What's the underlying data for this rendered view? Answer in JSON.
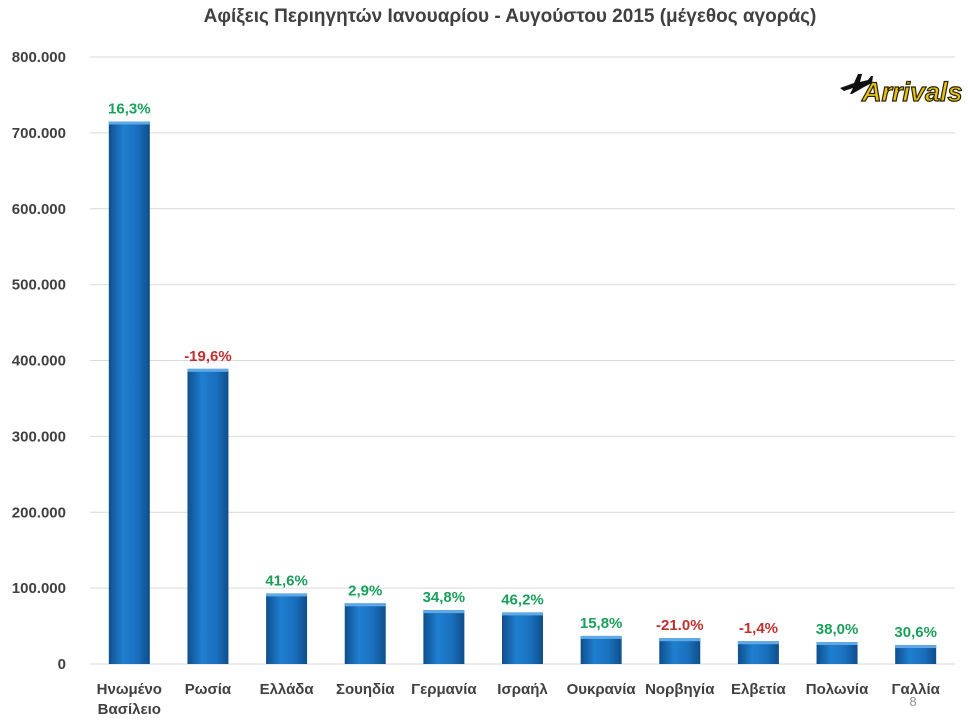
{
  "chart_data": {
    "type": "bar",
    "title": "Αφίξεις Περιηγητών Ιανουαρίου - Αυγούστου 2015 (μέγεθος αγοράς)",
    "categories": [
      [
        "Ηνωμένο",
        "Βασίλειο"
      ],
      [
        "Ρωσία"
      ],
      [
        "Ελλάδα"
      ],
      [
        "Σουηδία"
      ],
      [
        "Γερμανία"
      ],
      [
        "Ισραήλ"
      ],
      [
        "Ουκρανία"
      ],
      [
        "Νορβηγία"
      ],
      [
        "Ελβετία"
      ],
      [
        "Πολωνία"
      ],
      [
        "Γαλλία"
      ]
    ],
    "values": [
      715000,
      389000,
      93000,
      80000,
      71000,
      68000,
      37000,
      34000,
      30000,
      29000,
      25000
    ],
    "data_labels": [
      "16,3%",
      "-19,6%",
      "41,6%",
      "2,9%",
      "34,8%",
      "46,2%",
      "15,8%",
      "-21.0%",
      "-1,4%",
      "38,0%",
      "30,6%"
    ],
    "yticks": [
      "0",
      "100.000",
      "200.000",
      "300.000",
      "400.000",
      "500.000",
      "600.000",
      "700.000",
      "800.000"
    ],
    "ylim": [
      0,
      800000
    ],
    "xlabel": "",
    "ylabel": "",
    "grid": true,
    "colors": {
      "bar": "#1f77c4",
      "positive": "#19a05a",
      "negative": "#c0302f",
      "grid": "#d9d9d9",
      "axis_text": "#404040"
    }
  },
  "logo": {
    "text": "Arrivals",
    "icon": "airplane-icon"
  },
  "page_number": "8"
}
